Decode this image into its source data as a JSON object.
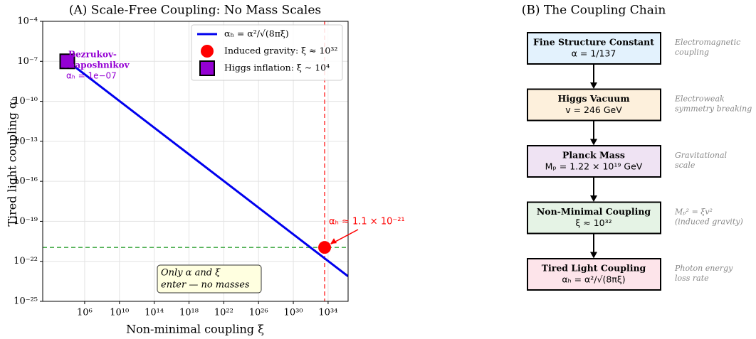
{
  "chart_data": {
    "type": "line",
    "title": "(A) Scale-Free Coupling: No Mass Scales",
    "xlabel": "Non-minimal coupling ξ",
    "ylabel": "Tired light coupling αₕ",
    "xscale": "log",
    "yscale": "log",
    "grid": true,
    "legend": "upper right",
    "xlim": [
      15,
      2e+36
    ],
    "ylim": [
      1e-25,
      0.0001
    ],
    "xticks": [
      {
        "value": 1000000.0,
        "label": "10⁶"
      },
      {
        "value": 10000000000.0,
        "label": "10¹⁰"
      },
      {
        "value": 100000000000000.0,
        "label": "10¹⁴"
      },
      {
        "value": 1e+18,
        "label": "10¹⁸"
      },
      {
        "value": 1e+22,
        "label": "10²²"
      },
      {
        "value": 1e+26,
        "label": "10²⁶"
      },
      {
        "value": 1e+30,
        "label": "10³⁰"
      },
      {
        "value": 1e+34,
        "label": "10³⁴"
      }
    ],
    "yticks": [
      {
        "value": 0.0001,
        "label": "10⁻⁴"
      },
      {
        "value": 1e-07,
        "label": "10⁻⁷"
      },
      {
        "value": 1e-10,
        "label": "10⁻¹⁰"
      },
      {
        "value": 1e-13,
        "label": "10⁻¹³"
      },
      {
        "value": 1e-16,
        "label": "10⁻¹⁶"
      },
      {
        "value": 1e-19,
        "label": "10⁻¹⁹"
      },
      {
        "value": 1e-22,
        "label": "10⁻²²"
      },
      {
        "value": 1e-25,
        "label": "10⁻²⁵"
      }
    ],
    "series": [
      {
        "name": "αₕ = α²/√(8πξ)",
        "color": "#0000ee",
        "kind": "line",
        "x": [
          10000,
          2e+36
        ],
        "values": [
          1.06e-07,
          7.5e-24
        ]
      },
      {
        "name": "Induced gravity: ξ ≈ 10³²",
        "color": "#ff0000",
        "kind": "circle",
        "x": [
          4e+33
        ],
        "values": [
          1.1e-21
        ]
      },
      {
        "name": "Higgs inflation: ξ ∼ 10⁴",
        "color": "#9400d3",
        "kind": "square",
        "x": [
          10000
        ],
        "values": [
          1e-07
        ]
      }
    ],
    "reference_lines": [
      {
        "orientation": "vertical",
        "value": 4e+33,
        "color": "#ff4444"
      },
      {
        "orientation": "horizontal",
        "value": 1.1e-21,
        "color": "#4caf50"
      }
    ],
    "annotations": [
      {
        "lines": [
          "Bezrukov-",
          "Shaposhnikov"
        ],
        "color": "#9400d3"
      },
      {
        "lines": [
          "αₕ = 1e−07"
        ],
        "color": "#9400d3"
      },
      {
        "lines": [
          "αₕ ≈ 1.1 × 10⁻²¹"
        ],
        "color": "#ff0000"
      },
      {
        "lines": [
          "Only α and ξ",
          "enter — no masses"
        ],
        "color": "#000000"
      }
    ]
  },
  "coupling_chain": {
    "title": "(B) The Coupling Chain",
    "nodes": [
      {
        "title": "Fine Structure Constant",
        "formula": "α = 1/137",
        "note": [
          "Electromagnetic",
          "coupling"
        ],
        "color": "#e3f2fd"
      },
      {
        "title": "Higgs Vacuum",
        "formula": "v = 246 GeV",
        "note": [
          "Electroweak",
          "symmetry breaking"
        ],
        "color": "#fdf0dc"
      },
      {
        "title": "Planck Mass",
        "formula": "Mₚ = 1.22 × 10¹⁹ GeV",
        "note": [
          "Gravitational",
          "scale"
        ],
        "color": "#efe3f3"
      },
      {
        "title": "Non-Minimal Coupling",
        "formula": "ξ ≈ 10³²",
        "note": [
          "Mₚ² = ξv²",
          "(induced gravity)"
        ],
        "color": "#e5f3e5"
      },
      {
        "title": "Tired Light Coupling",
        "formula": "αₕ = α²/√(8πξ)",
        "note": [
          "Photon energy",
          "loss rate"
        ],
        "color": "#fde4ea"
      }
    ]
  }
}
